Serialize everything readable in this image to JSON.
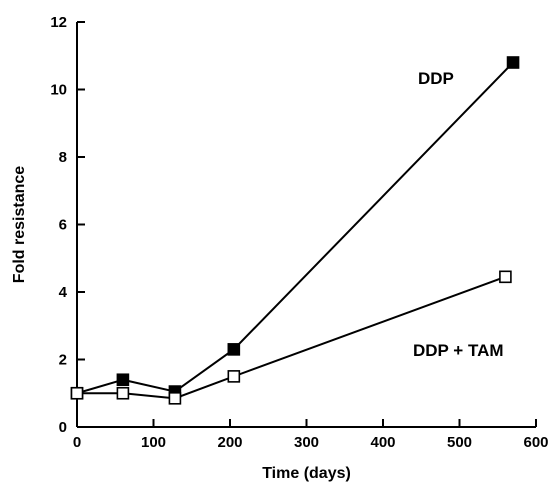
{
  "chart_data": {
    "type": "line",
    "title": "",
    "xlabel": "Time (days)",
    "ylabel": "Fold resistance",
    "xlim": [
      0,
      600
    ],
    "ylim": [
      0,
      12
    ],
    "xticks": [
      0,
      100,
      200,
      300,
      400,
      500,
      600
    ],
    "yticks": [
      0,
      2,
      4,
      6,
      8,
      10,
      12
    ],
    "grid": false,
    "legend": "none",
    "series": [
      {
        "name": "DDP",
        "marker": "filled-square",
        "color": "#000000",
        "points": [
          {
            "x": 0,
            "y": 1.0
          },
          {
            "x": 60,
            "y": 1.4
          },
          {
            "x": 128,
            "y": 1.05
          },
          {
            "x": 205,
            "y": 2.3
          },
          {
            "x": 570,
            "y": 10.8
          }
        ]
      },
      {
        "name": "DDP + TAM",
        "marker": "open-square",
        "color": "#000000",
        "points": [
          {
            "x": 0,
            "y": 1.0
          },
          {
            "x": 60,
            "y": 1.0
          },
          {
            "x": 128,
            "y": 0.85
          },
          {
            "x": 205,
            "y": 1.5
          },
          {
            "x": 560,
            "y": 4.45
          }
        ]
      }
    ]
  }
}
